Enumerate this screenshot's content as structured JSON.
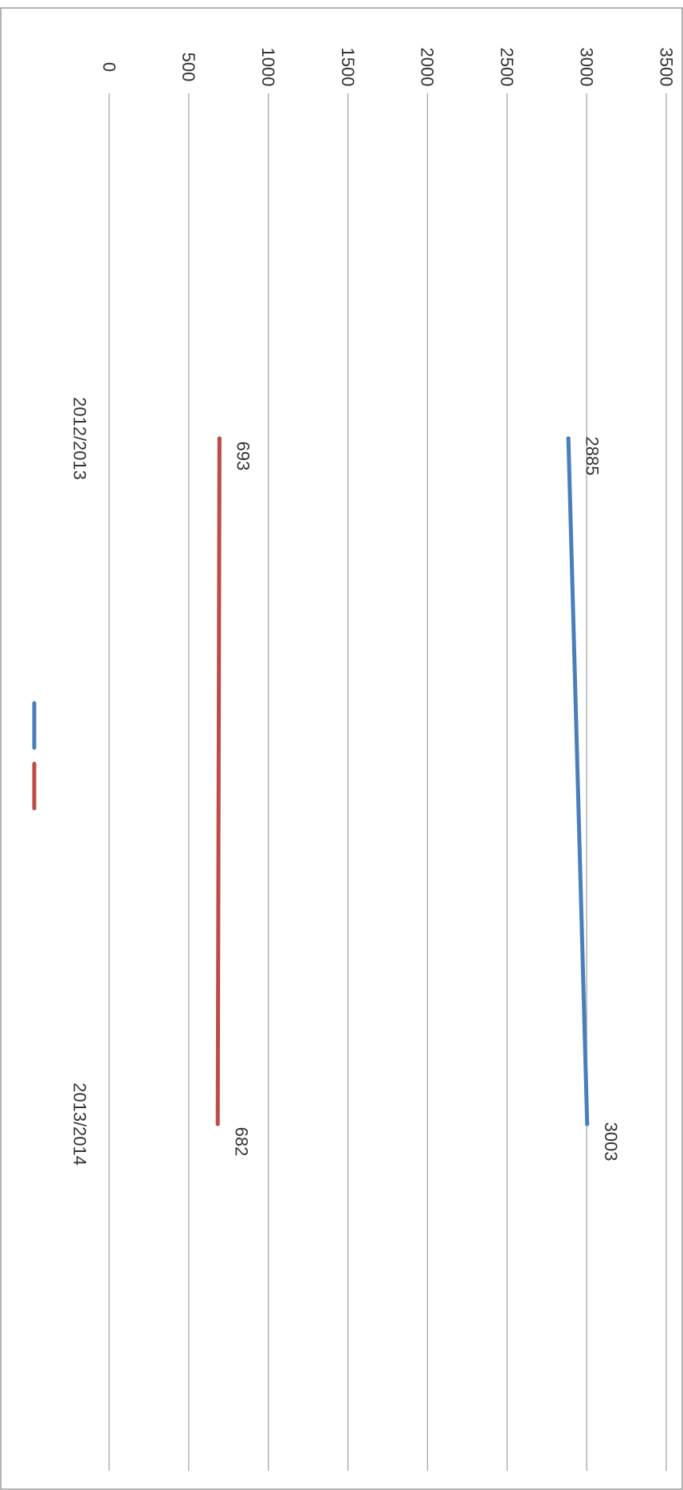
{
  "chart_data": {
    "type": "line",
    "orientation": "rotated-90-clockwise",
    "title": "",
    "xlabel": "",
    "ylabel": "",
    "categories": [
      "2012/2013",
      "2013/2014"
    ],
    "series": [
      {
        "values": [
          2885,
          3003
        ],
        "color": "#4a7ebb",
        "data_labels": [
          "2885",
          "3003"
        ]
      },
      {
        "values": [
          693,
          682
        ],
        "color": "#be4b48",
        "data_labels": [
          "693",
          "682"
        ]
      }
    ],
    "ylim": [
      0,
      3500
    ],
    "yticks": [
      0,
      500,
      1000,
      1500,
      2000,
      2500,
      3000,
      3500
    ],
    "ytick_labels": [
      "0",
      "500",
      "1000",
      "1500",
      "2000",
      "2500",
      "3000",
      "3500"
    ],
    "grid": true,
    "legend": {
      "placement": "left"
    },
    "colors": {
      "grid": "#a6a6a6",
      "border": "#9a9a9a",
      "text": "#333333"
    }
  }
}
